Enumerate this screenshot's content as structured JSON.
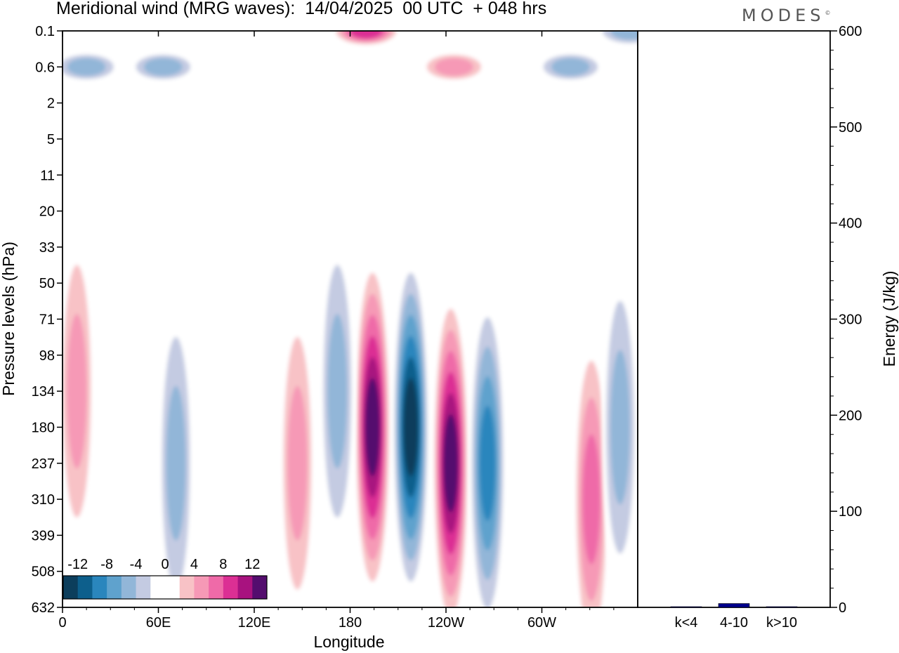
{
  "title": "Meridional wind (MRG waves):  14/04/2025  00 UTC  + 048 hrs",
  "logo": "MODES",
  "logo_mark": "©",
  "chart_data": [
    {
      "type": "heatmap",
      "title": "Meridional wind (MRG waves):  14/04/2025  00 UTC  + 048 hrs",
      "xlabel": "Longitude",
      "ylabel": "Pressure levels (hPa)",
      "x_ticks": [
        "0",
        "60E",
        "120E",
        "180",
        "120W",
        "60W"
      ],
      "x_tick_values": [
        0,
        60,
        120,
        180,
        240,
        300
      ],
      "xlim": [
        0,
        360
      ],
      "y_ticks": [
        "0.1",
        "0.6",
        "2",
        "5",
        "11",
        "20",
        "33",
        "50",
        "71",
        "98",
        "134",
        "180",
        "237",
        "310",
        "399",
        "508",
        "632"
      ],
      "colorbar": {
        "labels": [
          "-12",
          "-8",
          "-4",
          "0",
          "4",
          "8",
          "12"
        ],
        "label_values": [
          -12,
          -8,
          -4,
          0,
          4,
          8,
          12
        ],
        "levels": [
          -14,
          -12,
          -10,
          -8,
          -6,
          -4,
          -2,
          0,
          2,
          4,
          6,
          8,
          10,
          12,
          14
        ],
        "colors": [
          "#0c3e5c",
          "#0d5f8c",
          "#2a86bd",
          "#5fa2cd",
          "#92b6d8",
          "#c4cbe2",
          "#ffffff",
          "#ffffff",
          "#f8c2c6",
          "#f699b6",
          "#ef6aa8",
          "#dc2f94",
          "#a8127f",
          "#540d6e"
        ]
      },
      "features": [
        {
          "lon": 194,
          "level": "180",
          "value": 14
        },
        {
          "lon": 218,
          "level": "180",
          "value": -14
        },
        {
          "lon": 243,
          "level": "237",
          "value": 14
        },
        {
          "lon": 266,
          "level": "237",
          "value": -10
        },
        {
          "lon": 172,
          "level": "134",
          "value": -6
        },
        {
          "lon": 147,
          "level": "237",
          "value": 6
        },
        {
          "lon": 71,
          "level": "237",
          "value": -6
        },
        {
          "lon": 9,
          "level": "134",
          "value": 6
        },
        {
          "lon": 331,
          "level": "310",
          "value": 8
        },
        {
          "lon": 349,
          "level": "180",
          "value": -6
        },
        {
          "lon": 190,
          "level": "0.1",
          "value": 10
        },
        {
          "lon": 15,
          "level": "0.6",
          "value": -6
        },
        {
          "lon": 63,
          "level": "0.6",
          "value": -6
        },
        {
          "lon": 318,
          "level": "0.6",
          "value": -6
        },
        {
          "lon": 245,
          "level": "0.6",
          "value": 6
        },
        {
          "lon": 355,
          "level": "0.1",
          "value": -6
        }
      ]
    },
    {
      "type": "bar",
      "ylabel": "Energy (J/kg)",
      "ylim": [
        0,
        600
      ],
      "y_ticks": [
        "0",
        "100",
        "200",
        "300",
        "400",
        "500",
        "600"
      ],
      "y_tick_values": [
        0,
        100,
        200,
        300,
        400,
        500,
        600
      ],
      "categories": [
        "k<4",
        "4-10",
        "k>10"
      ],
      "values": [
        0.5,
        4,
        0.3
      ],
      "color": "#00008b"
    }
  ]
}
